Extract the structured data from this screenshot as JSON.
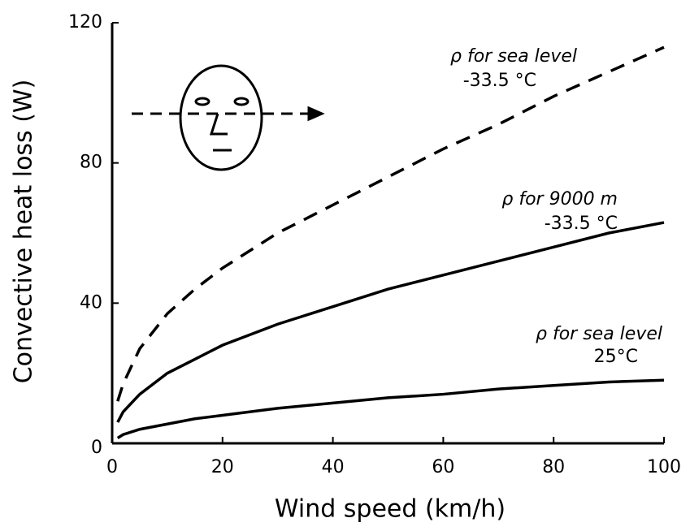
{
  "chart_data": {
    "type": "line",
    "x_label": "Wind speed (km/h)",
    "y_label": "Convective heat loss (W)",
    "x": [
      1,
      2,
      5,
      10,
      15,
      20,
      30,
      40,
      50,
      60,
      70,
      80,
      90,
      100
    ],
    "series": [
      {
        "color": "#000000",
        "linestyle": "dashed",
        "values": [
          12,
          17,
          27,
          37,
          44,
          50,
          60,
          68,
          76,
          84,
          91,
          99,
          106,
          113
        ]
      },
      {
        "color": "#000000",
        "linestyle": "solid",
        "values": [
          6,
          9,
          14,
          20,
          24,
          28,
          34,
          39,
          44,
          48,
          52,
          56,
          60,
          63
        ]
      },
      {
        "color": "#000000",
        "linestyle": "solid",
        "values": [
          1.5,
          2.5,
          4,
          5.5,
          7,
          8,
          10,
          11.5,
          13,
          14,
          15.5,
          16.5,
          17.5,
          18
        ]
      }
    ],
    "annotations": [
      [
        "ρ for sea level",
        "-33.5 °C"
      ],
      [
        "ρ for 9000 m",
        "-33.5 °C"
      ],
      [
        "ρ for sea level",
        "25°C"
      ]
    ],
    "xlim": [
      0,
      100
    ],
    "xticks": [
      0,
      20,
      40,
      60,
      80,
      100
    ],
    "ylim": [
      0,
      120
    ],
    "yticks": [
      0,
      40,
      80,
      120
    ]
  }
}
